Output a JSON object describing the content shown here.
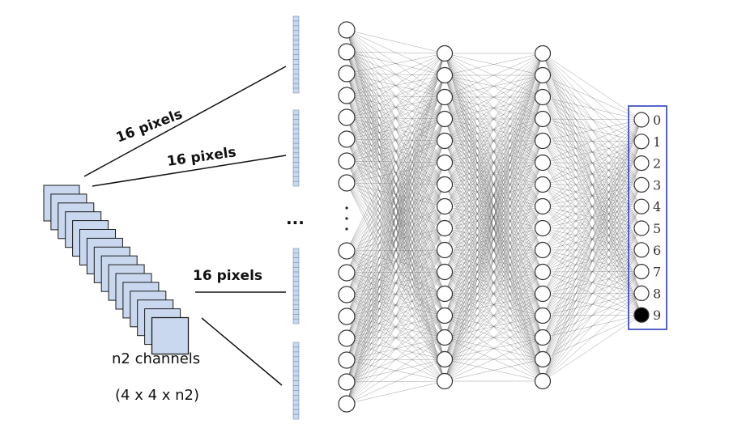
{
  "labels": {
    "pixels_1": "16 pixels",
    "pixels_2": "16 pixels",
    "pixels_3": "16 pixels",
    "ellipsis": "...",
    "channels": "n2 channels",
    "shape": "(4 x 4 x n2)"
  },
  "network": {
    "input_visible_nodes": 18,
    "hidden_layer_1_nodes": 16,
    "hidden_layer_2_nodes": 16,
    "output_nodes": 10,
    "output_labels": [
      "0",
      "1",
      "2",
      "3",
      "4",
      "5",
      "6",
      "7",
      "8",
      "9"
    ],
    "active_output": "9"
  },
  "feature_maps": {
    "count": 16,
    "vector_count": 4
  },
  "colors": {
    "feature_map_fill": "#c9d8ee",
    "feature_map_stroke": "#1a1a1a",
    "output_box": "#2b3fbf",
    "active_node": "#000000"
  }
}
